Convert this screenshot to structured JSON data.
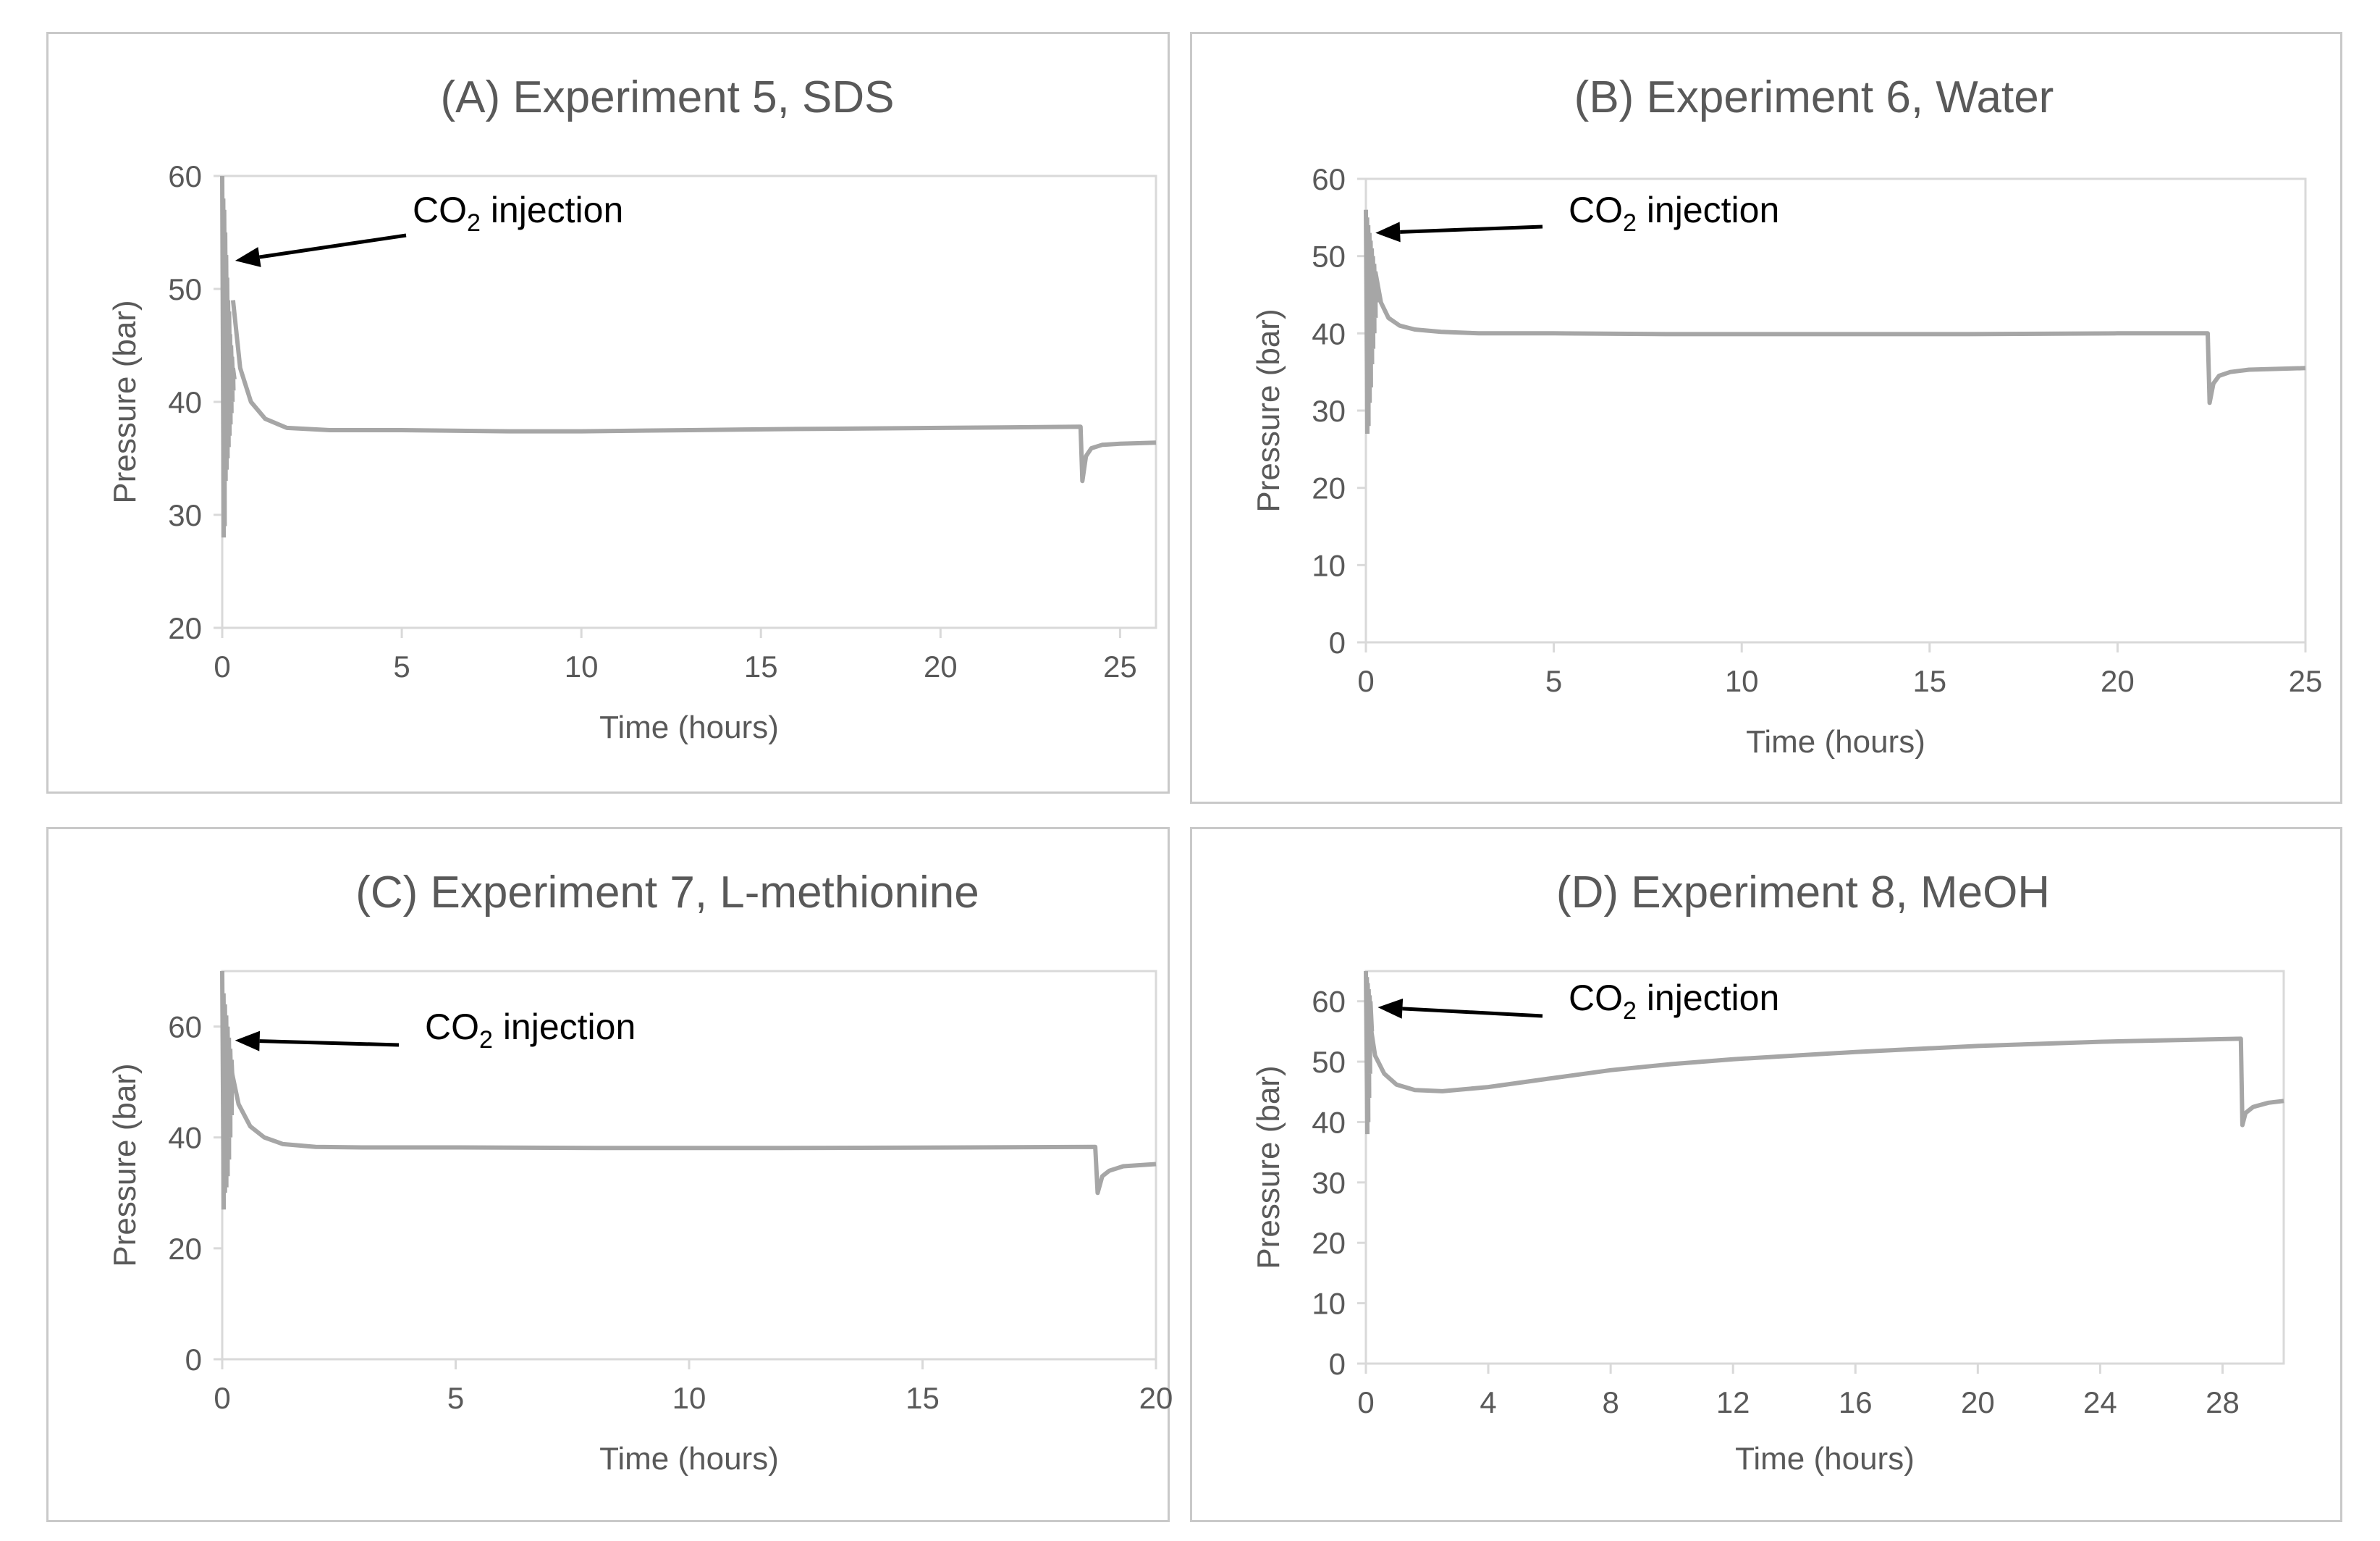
{
  "colors": {
    "series": "#a6a6a6",
    "axis": "#d9d9d9",
    "text": "#595959",
    "arrow": "#000000"
  },
  "chart_data": [
    {
      "type": "line",
      "title": "(A)  Experiment 5, SDS",
      "xlabel": "Time (hours)",
      "ylabel": "Pressure (bar)",
      "xlim": [
        0,
        26
      ],
      "ylim": [
        20,
        60
      ],
      "xticks": [
        0,
        5,
        10,
        15,
        20,
        25
      ],
      "yticks": [
        20,
        30,
        40,
        50,
        60
      ],
      "annotation": {
        "text_main": "CO",
        "text_sub": "2",
        "text_rest": " injection",
        "arrow_to": [
          0.2,
          52.5
        ]
      },
      "series": [
        {
          "name": "Pressure",
          "x": [
            0.3,
            0.5,
            0.8,
            1.2,
            1.8,
            3,
            5,
            8,
            10,
            13,
            16,
            20,
            23.9,
            23.95,
            24.05,
            24.2,
            24.5,
            25,
            26
          ],
          "y": [
            49,
            43,
            40,
            38.5,
            37.7,
            37.5,
            37.5,
            37.4,
            37.4,
            37.5,
            37.6,
            37.7,
            37.8,
            33,
            35.2,
            35.9,
            36.2,
            36.3,
            36.4
          ]
        }
      ],
      "injection_spikes": {
        "x_range": [
          0,
          0.3
        ],
        "max": [
          60,
          58,
          57,
          55,
          53,
          51,
          49,
          48,
          46,
          45,
          44,
          43
        ],
        "min": [
          28,
          29,
          33,
          34,
          35,
          36,
          37,
          38,
          39,
          40,
          41,
          42
        ]
      }
    },
    {
      "type": "line",
      "title": "(B) Experiment  6, Water",
      "xlabel": "Time (hours)",
      "ylabel": "Pressure (bar)",
      "xlim": [
        0,
        25
      ],
      "ylim": [
        0,
        60
      ],
      "xticks": [
        0,
        5,
        10,
        15,
        20,
        25
      ],
      "yticks": [
        0,
        10,
        20,
        30,
        40,
        50,
        60
      ],
      "annotation": {
        "text_main": "CO",
        "text_sub": "2",
        "text_rest": " injection",
        "arrow_to": [
          0.1,
          53
        ]
      },
      "series": [
        {
          "name": "Pressure",
          "x": [
            0.25,
            0.4,
            0.6,
            0.9,
            1.3,
            2,
            3,
            5,
            8,
            12,
            16,
            20,
            22.4,
            22.45,
            22.55,
            22.7,
            23,
            23.5,
            25
          ],
          "y": [
            48,
            44,
            42,
            41,
            40.5,
            40.2,
            40,
            40,
            39.9,
            39.9,
            39.9,
            40,
            40,
            31,
            33.5,
            34.5,
            35,
            35.3,
            35.5
          ]
        }
      ],
      "injection_spikes": {
        "x_range": [
          0,
          0.25
        ],
        "max": [
          56,
          55,
          54,
          53,
          52,
          51,
          50,
          49,
          48
        ],
        "min": [
          27,
          28,
          31,
          33,
          36,
          38,
          40,
          42,
          44
        ]
      }
    },
    {
      "type": "line",
      "title": "(C) Experiment 7, L-methionine",
      "xlabel": "Time (hours)",
      "ylabel": "Pressure (bar)",
      "xlim": [
        0,
        20
      ],
      "ylim": [
        0,
        70
      ],
      "xticks": [
        0,
        5,
        10,
        15,
        20
      ],
      "yticks": [
        0,
        20,
        40,
        60
      ],
      "annotation": {
        "text_main": "CO",
        "text_sub": "2",
        "text_rest": " injection",
        "arrow_to": [
          0.15,
          57.5
        ]
      },
      "series": [
        {
          "name": "Pressure",
          "x": [
            0.2,
            0.35,
            0.6,
            0.9,
            1.3,
            2,
            3,
            5,
            8,
            12,
            16,
            18.7,
            18.75,
            18.85,
            19,
            19.3,
            20
          ],
          "y": [
            52,
            46,
            42,
            40,
            38.8,
            38.3,
            38.2,
            38.2,
            38.1,
            38.1,
            38.2,
            38.3,
            30,
            33,
            34,
            34.8,
            35.2
          ]
        }
      ],
      "injection_spikes": {
        "x_range": [
          0,
          0.2
        ],
        "max": [
          70,
          66,
          64,
          62,
          60,
          58,
          56,
          54
        ],
        "min": [
          27,
          30,
          31,
          33,
          36,
          40,
          44,
          48
        ]
      }
    },
    {
      "type": "line",
      "title": "(D) Experiment 8, MeOH",
      "xlabel": "Time (hours)",
      "ylabel": "Pressure (bar)",
      "xlim": [
        0,
        30
      ],
      "ylim": [
        0,
        65
      ],
      "xticks": [
        0,
        4,
        8,
        12,
        16,
        20,
        24,
        28
      ],
      "yticks": [
        0,
        10,
        20,
        30,
        40,
        50,
        60
      ],
      "annotation": {
        "text_main": "CO",
        "text_sub": "2",
        "text_rest": " injection",
        "arrow_to": [
          0.2,
          59
        ]
      },
      "series": [
        {
          "name": "Pressure",
          "x": [
            0.15,
            0.3,
            0.6,
            1,
            1.6,
            2.5,
            4,
            6,
            8,
            10,
            12,
            16,
            20,
            24,
            28.6,
            28.65,
            28.75,
            29,
            29.5,
            30
          ],
          "y": [
            56,
            51,
            48,
            46.2,
            45.3,
            45.1,
            45.8,
            47.2,
            48.6,
            49.6,
            50.4,
            51.6,
            52.6,
            53.3,
            53.8,
            39.5,
            41.5,
            42.5,
            43.2,
            43.5
          ]
        }
      ],
      "injection_spikes": {
        "x_range": [
          0,
          0.15
        ],
        "max": [
          65,
          64,
          63,
          62,
          61,
          60
        ],
        "min": [
          38,
          40,
          44,
          48,
          52,
          55
        ]
      }
    }
  ]
}
